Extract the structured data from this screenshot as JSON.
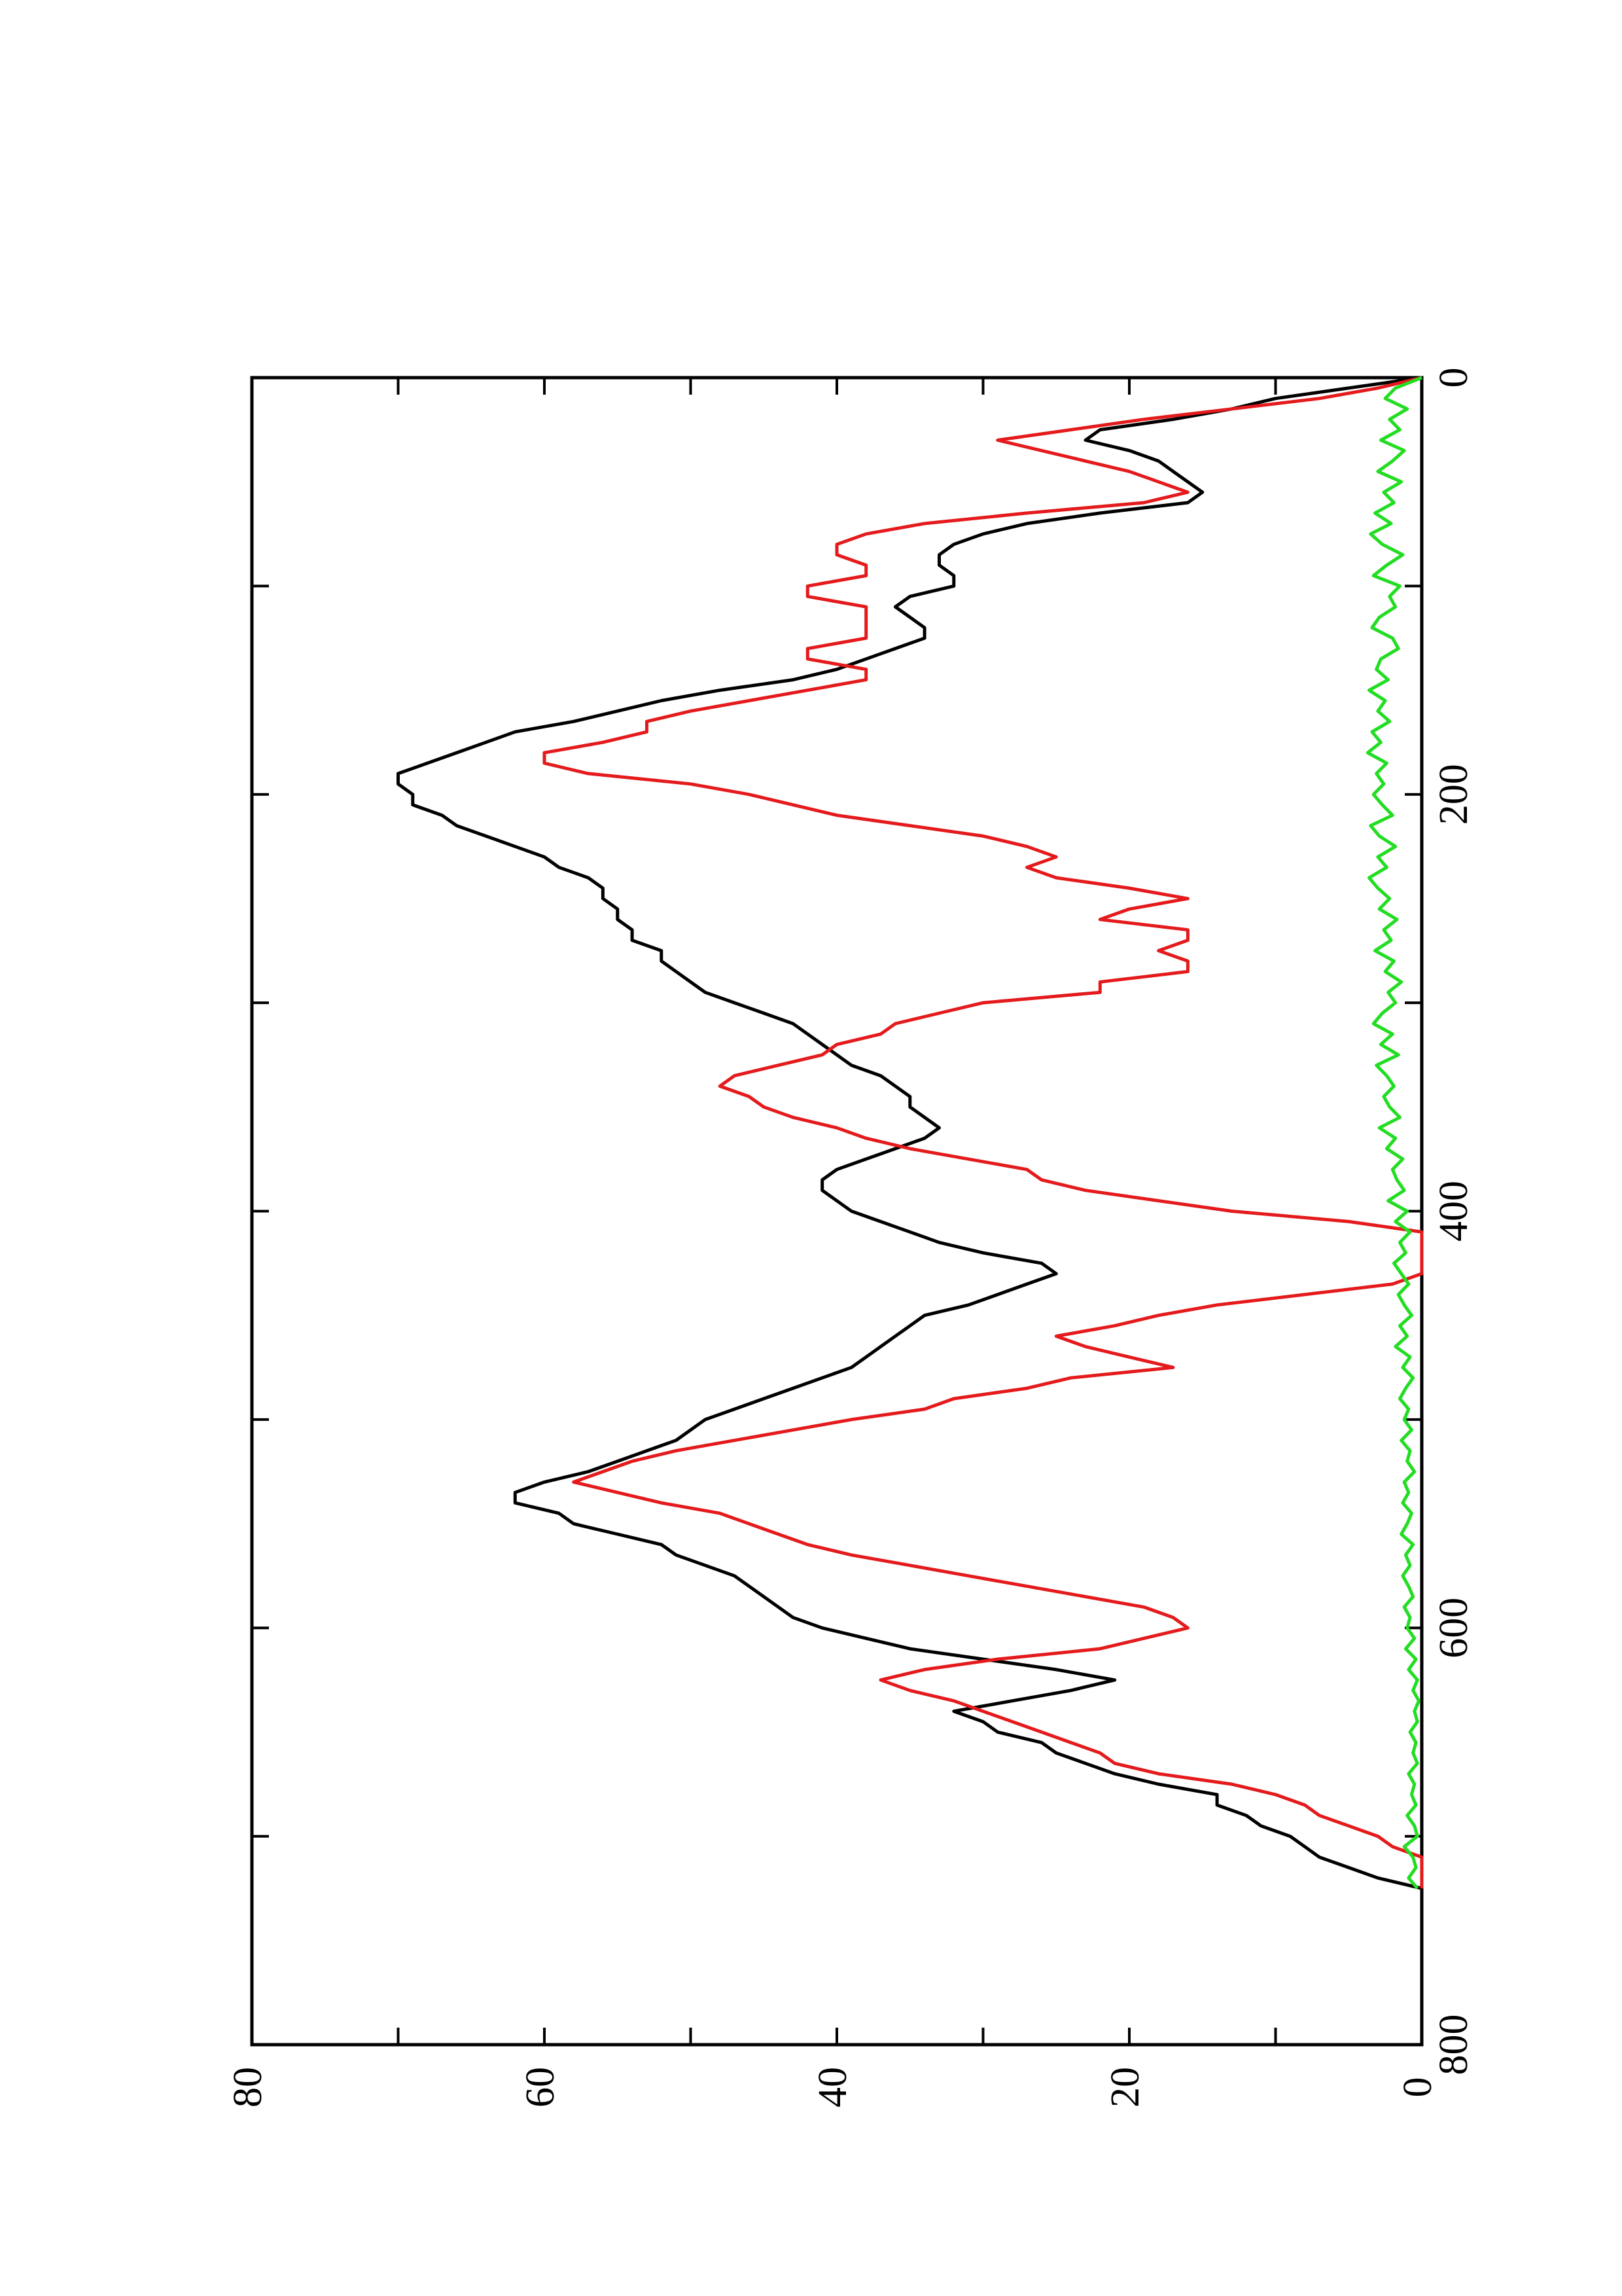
{
  "chart_data": {
    "type": "line",
    "orientation": "rotated 90 degrees clockwise (page landscape)",
    "title": "",
    "xlabel": "",
    "ylabel": "",
    "xlim": [
      0,
      800
    ],
    "ylim": [
      0,
      80
    ],
    "x_ticks": [
      "0",
      "200",
      "400",
      "600",
      "800"
    ],
    "y_ticks": [
      "0",
      "20",
      "40",
      "60",
      "80"
    ],
    "grid": false,
    "legend": "none",
    "series": [
      {
        "color": "#000000",
        "x": [
          0,
          5,
          10,
          15,
          20,
          25,
          30,
          35,
          40,
          45,
          50,
          55,
          60,
          65,
          70,
          75,
          80,
          85,
          90,
          95,
          100,
          105,
          110,
          115,
          120,
          125,
          130,
          135,
          140,
          145,
          150,
          155,
          160,
          165,
          170,
          175,
          180,
          185,
          190,
          195,
          200,
          205,
          210,
          215,
          220,
          225,
          230,
          235,
          240,
          245,
          250,
          255,
          260,
          265,
          270,
          275,
          280,
          285,
          290,
          295,
          300,
          305,
          310,
          315,
          320,
          325,
          330,
          335,
          340,
          345,
          350,
          355,
          360,
          365,
          370,
          375,
          380,
          385,
          390,
          395,
          400,
          405,
          410,
          415,
          420,
          425,
          430,
          435,
          440,
          445,
          450,
          455,
          460,
          465,
          470,
          475,
          480,
          485,
          490,
          495,
          500,
          505,
          510,
          515,
          520,
          525,
          530,
          535,
          540,
          545,
          550,
          555,
          560,
          565,
          570,
          575,
          580,
          585,
          590,
          595,
          600,
          605,
          610,
          615,
          620,
          625,
          630,
          635,
          640,
          645,
          650,
          655,
          660,
          665,
          670,
          675,
          680,
          685,
          690,
          695,
          700,
          705,
          710,
          715,
          720,
          725
        ],
        "y": [
          0,
          5,
          10,
          13,
          17,
          22,
          23,
          20,
          18,
          17,
          16,
          15,
          16,
          22,
          27,
          30,
          32,
          33,
          33,
          32,
          32,
          35,
          36,
          35,
          34,
          34,
          36,
          38,
          40,
          43,
          48,
          52,
          55,
          58,
          62,
          64,
          66,
          68,
          70,
          70,
          69,
          69,
          67,
          66,
          64,
          62,
          60,
          59,
          57,
          56,
          56,
          55,
          55,
          54,
          54,
          52,
          52,
          51,
          50,
          49,
          47,
          45,
          43,
          42,
          41,
          40,
          39,
          37,
          36,
          35,
          35,
          34,
          33,
          34,
          36,
          38,
          40,
          41,
          41,
          40,
          39,
          37,
          35,
          33,
          30,
          26,
          25,
          27,
          29,
          31,
          34,
          35,
          36,
          37,
          38,
          39,
          41,
          43,
          45,
          47,
          49,
          50,
          51,
          53,
          55,
          57,
          60,
          62,
          62,
          59,
          58,
          55,
          52,
          51,
          49,
          47,
          46,
          45,
          44,
          43,
          41,
          38,
          35,
          30,
          25,
          21,
          24,
          28,
          32,
          30,
          29,
          26,
          25,
          23,
          21,
          18,
          14,
          14,
          12,
          11,
          9,
          8,
          7,
          5,
          3,
          0
        ]
      },
      {
        "color": "#e41a1c",
        "x": [
          0,
          5,
          10,
          15,
          20,
          25,
          30,
          35,
          40,
          45,
          50,
          55,
          60,
          65,
          70,
          75,
          80,
          85,
          90,
          95,
          100,
          105,
          110,
          115,
          120,
          125,
          130,
          135,
          140,
          145,
          150,
          155,
          160,
          165,
          170,
          175,
          180,
          185,
          190,
          195,
          200,
          205,
          210,
          215,
          220,
          225,
          230,
          235,
          240,
          245,
          250,
          255,
          260,
          265,
          270,
          275,
          280,
          285,
          290,
          295,
          300,
          305,
          310,
          315,
          320,
          325,
          330,
          335,
          340,
          345,
          350,
          355,
          360,
          365,
          370,
          375,
          380,
          385,
          390,
          395,
          400,
          405,
          410,
          415,
          420,
          425,
          430,
          435,
          440,
          445,
          450,
          455,
          460,
          465,
          470,
          475,
          480,
          485,
          490,
          495,
          500,
          505,
          510,
          515,
          520,
          525,
          530,
          535,
          540,
          545,
          550,
          555,
          560,
          565,
          570,
          575,
          580,
          585,
          590,
          595,
          600,
          605,
          610,
          615,
          620,
          625,
          630,
          635,
          640,
          645,
          650,
          655,
          660,
          665,
          670,
          675,
          680,
          685,
          690,
          695,
          700,
          705,
          710,
          715,
          720,
          725
        ],
        "y": [
          0,
          3,
          7,
          13,
          19,
          24,
          29,
          26,
          23,
          20,
          18,
          16,
          19,
          27,
          34,
          38,
          40,
          40,
          38,
          38,
          42,
          42,
          38,
          38,
          38,
          38,
          42,
          42,
          38,
          38,
          42,
          46,
          50,
          53,
          53,
          56,
          60,
          60,
          57,
          50,
          46,
          43,
          40,
          35,
          30,
          27,
          25,
          27,
          25,
          20,
          16,
          20,
          22,
          16,
          16,
          18,
          16,
          16,
          22,
          22,
          30,
          33,
          36,
          37,
          40,
          41,
          44,
          47,
          48,
          46,
          45,
          43,
          40,
          38,
          35,
          31,
          27,
          26,
          23,
          18,
          13,
          5,
          0,
          0,
          0,
          0,
          0,
          2,
          8,
          14,
          18,
          21,
          25,
          23,
          20,
          17,
          24,
          27,
          32,
          34,
          39,
          43,
          47,
          51,
          54,
          56,
          58,
          55,
          52,
          48,
          46,
          44,
          42,
          39,
          35,
          31,
          27,
          23,
          19,
          17,
          16,
          19,
          22,
          29,
          34,
          37,
          35,
          32,
          30,
          28,
          26,
          24,
          22,
          21,
          18,
          13,
          10,
          8,
          7,
          5,
          3,
          2,
          0,
          0,
          0,
          0
        ]
      },
      {
        "color": "#22dd22",
        "x": [
          0,
          5,
          10,
          15,
          20,
          25,
          30,
          35,
          40,
          45,
          50,
          55,
          60,
          65,
          70,
          75,
          80,
          85,
          90,
          95,
          100,
          105,
          110,
          115,
          120,
          125,
          130,
          135,
          140,
          145,
          150,
          155,
          160,
          165,
          170,
          175,
          180,
          185,
          190,
          195,
          200,
          205,
          210,
          215,
          220,
          225,
          230,
          235,
          240,
          245,
          250,
          255,
          260,
          265,
          270,
          275,
          280,
          285,
          290,
          295,
          300,
          305,
          310,
          315,
          320,
          325,
          330,
          335,
          340,
          345,
          350,
          355,
          360,
          365,
          370,
          375,
          380,
          385,
          390,
          395,
          400,
          405,
          410,
          415,
          420,
          425,
          430,
          435,
          440,
          445,
          450,
          455,
          460,
          465,
          470,
          475,
          480,
          485,
          490,
          495,
          500,
          505,
          510,
          515,
          520,
          525,
          530,
          535,
          540,
          545,
          550,
          555,
          560,
          565,
          570,
          575,
          580,
          585,
          590,
          595,
          600,
          605,
          610,
          615,
          620,
          625,
          630,
          635,
          640,
          645,
          650,
          655,
          660,
          665,
          670,
          675,
          680,
          685,
          690,
          695,
          700,
          705,
          710,
          715,
          720,
          725
        ],
        "y": [
          0,
          1.8,
          2.5,
          1.0,
          2.2,
          1.5,
          2.8,
          1.2,
          2.0,
          3.0,
          1.4,
          2.6,
          1.9,
          3.2,
          2.1,
          3.5,
          2.7,
          1.3,
          2.4,
          3.3,
          1.5,
          2.2,
          1.8,
          2.9,
          3.4,
          2.0,
          1.6,
          2.8,
          3.1,
          2.3,
          3.6,
          2.5,
          3.0,
          2.2,
          3.4,
          2.8,
          3.7,
          2.4,
          3.1,
          2.6,
          3.3,
          2.7,
          2.0,
          3.5,
          2.9,
          1.8,
          3.0,
          2.4,
          3.6,
          3.0,
          2.2,
          2.9,
          1.7,
          2.6,
          2.1,
          3.2,
          1.9,
          2.5,
          1.4,
          2.3,
          1.8,
          2.7,
          3.3,
          2.0,
          2.8,
          1.6,
          3.1,
          2.4,
          1.9,
          2.6,
          2.2,
          1.5,
          2.9,
          1.8,
          2.4,
          1.3,
          2.0,
          1.7,
          1.2,
          2.3,
          1.0,
          1.8,
          0.8,
          1.5,
          1.1,
          1.9,
          1.4,
          0.9,
          1.6,
          1.2,
          0.7,
          1.5,
          1.0,
          1.8,
          0.8,
          1.3,
          0.6,
          1.1,
          1.5,
          0.9,
          1.2,
          0.7,
          1.4,
          0.8,
          1.0,
          0.5,
          1.2,
          0.9,
          1.3,
          0.7,
          1.0,
          1.4,
          0.6,
          1.1,
          0.8,
          1.3,
          0.9,
          0.6,
          1.2,
          0.8,
          1.0,
          0.5,
          1.1,
          0.4,
          0.9,
          0.3,
          0.6,
          0.2,
          0.5,
          0.3,
          0.8,
          0.4,
          0.6,
          0.3,
          0.9,
          0.5,
          0.7,
          0.4,
          1.0,
          0.5,
          0.3,
          1.2,
          0.6,
          0.4,
          0.9,
          0.3
        ]
      }
    ]
  }
}
